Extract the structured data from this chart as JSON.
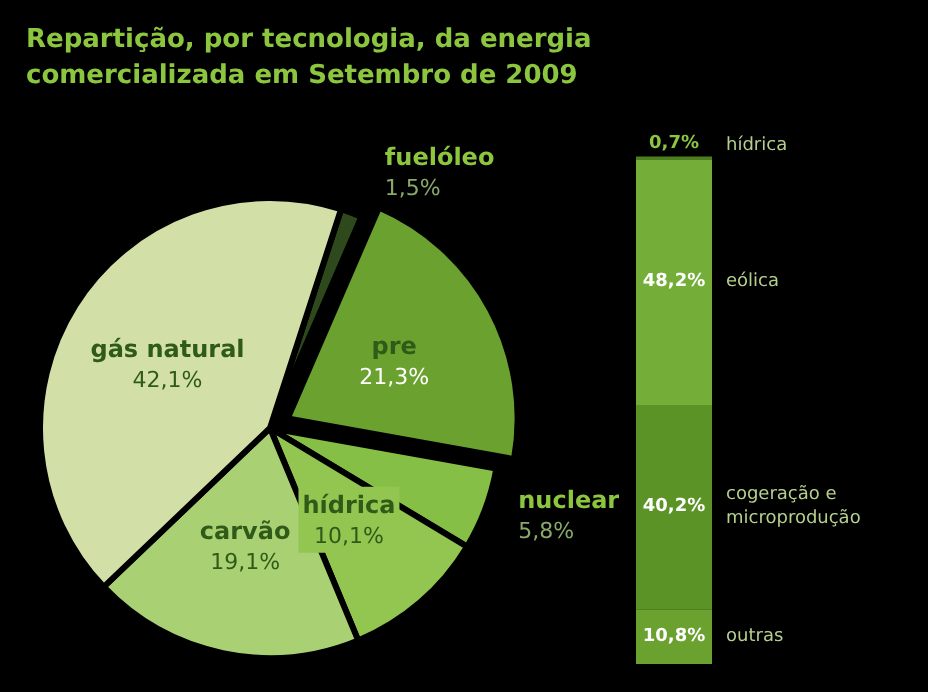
{
  "chart_data": [
    {
      "type": "pie",
      "title": "Repartição, por tecnologia, da energia comercializada em Setembro de 2009",
      "categories": [
        "fuelóleo",
        "pre",
        "nuclear",
        "hídrica",
        "carvão",
        "gás natural"
      ],
      "values": [
        1.5,
        21.3,
        5.8,
        10.1,
        19.1,
        42.1
      ],
      "colors": [
        "#2e4a1c",
        "#6aa12f",
        "#86bf45",
        "#93c551",
        "#a9d173",
        "#d2e0a7"
      ],
      "value_labels": [
        "1,5%",
        "21,3%",
        "5,8%",
        "10,1%",
        "19,1%",
        "42,1%"
      ]
    },
    {
      "type": "bar",
      "stacked": true,
      "categories": [
        null
      ],
      "data_labels": true,
      "series": [
        {
          "name": "outras",
          "color": "#6aa12f",
          "values": [
            10.8
          ],
          "value_labels": [
            "10,8%"
          ]
        },
        {
          "name": "cogeração e\nmicroprodução",
          "color": "#5c9327",
          "values": [
            40.2
          ],
          "value_labels": [
            "40,2%"
          ]
        },
        {
          "name": "eólica",
          "color": "#74ad38",
          "values": [
            48.2
          ],
          "value_labels": [
            "48,2%"
          ]
        },
        {
          "name": "hídrica",
          "color": "#4d7f20",
          "values": [
            0.7
          ],
          "value_labels": [
            "0,7%"
          ]
        }
      ]
    }
  ]
}
